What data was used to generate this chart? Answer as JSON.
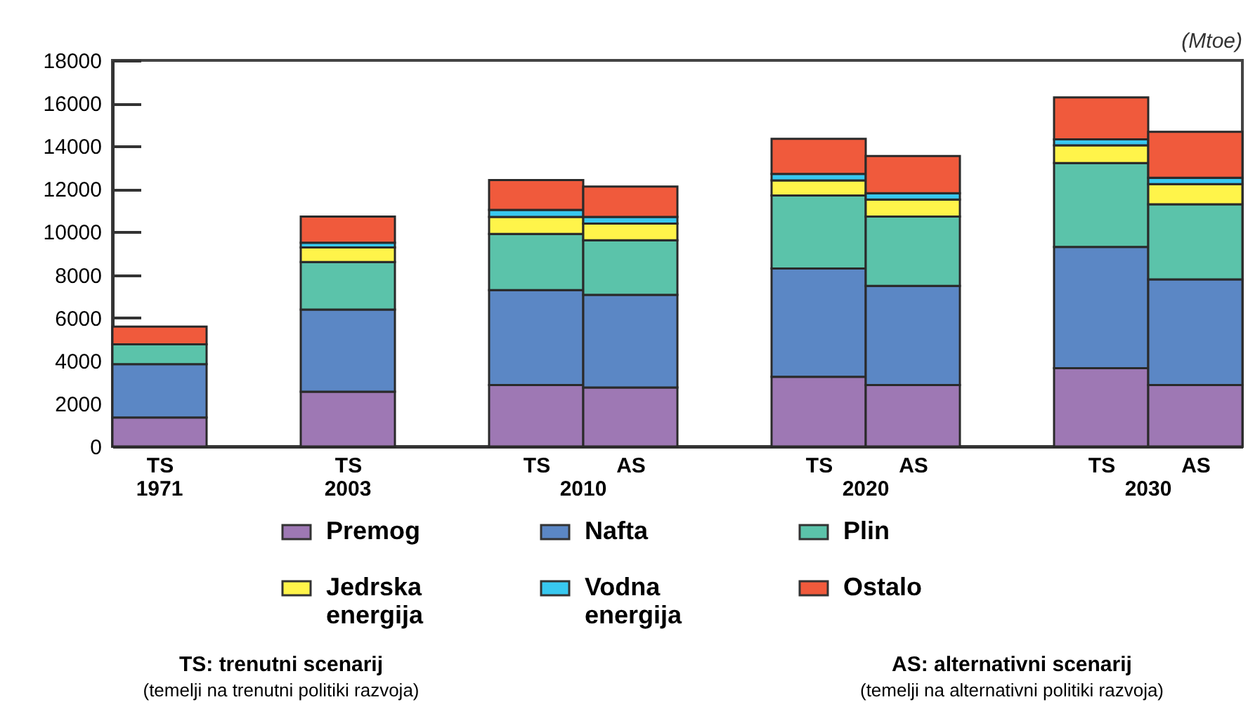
{
  "chart_data": {
    "type": "bar",
    "stacked": true,
    "ylabel": "(Mtoe)",
    "categories": [
      "TS",
      "TS",
      "TS",
      "AS",
      "TS",
      "AS",
      "TS",
      "AS"
    ],
    "series": [
      {
        "name": "Premog",
        "color": "#9e78b4",
        "values": [
          1350,
          2550,
          2860,
          2750,
          3250,
          2860,
          3650,
          2860
        ]
      },
      {
        "name": "Nafta",
        "color": "#5b87c5",
        "values": [
          2490,
          3830,
          4430,
          4320,
          5050,
          4630,
          5650,
          4930
        ]
      },
      {
        "name": "Plin",
        "color": "#5bc3aa",
        "values": [
          920,
          2220,
          2620,
          2540,
          3400,
          3230,
          3910,
          3500
        ]
      },
      {
        "name": "Jedrska energija",
        "color": "#fff44a",
        "values": [
          null,
          680,
          790,
          780,
          700,
          790,
          830,
          940
        ]
      },
      {
        "name": "Vodna energija",
        "color": "#38c8f0",
        "values": [
          null,
          220,
          330,
          310,
          310,
          300,
          280,
          300
        ]
      },
      {
        "name": "Ostalo",
        "color": "#f05a3c",
        "values": [
          830,
          1220,
          1390,
          1420,
          1630,
          1730,
          1950,
          2140
        ]
      }
    ],
    "ylim": [
      0,
      18000
    ],
    "yticks": [
      0,
      2000,
      4000,
      6000,
      8000,
      10000,
      12000,
      14000,
      16000,
      18000
    ],
    "legend": "bottom",
    "annotations": [
      "1971",
      "2003",
      "2010",
      "2020",
      "2030",
      "TS: trenutni scenarij",
      "(temelji na trenutni politiki razvoja)",
      "AS: alternativni scenarij",
      "(temelji na alternativni politiki razvoja)"
    ]
  }
}
